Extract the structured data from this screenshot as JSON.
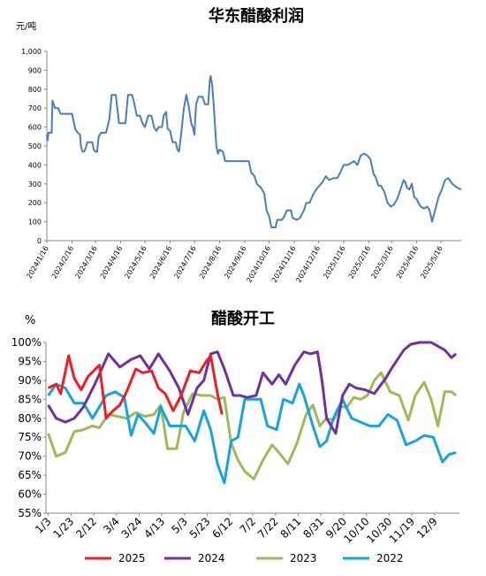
{
  "chart_data": [
    {
      "type": "line",
      "title": "华东醋酸利润",
      "ylabel": "元/吨",
      "ylim": [
        0,
        1000
      ],
      "yticks": [
        "0",
        "100",
        "200",
        "300",
        "400",
        "500",
        "600",
        "700",
        "800",
        "900",
        "1,000"
      ],
      "xlim": [
        "2024-01-16",
        "2025-06-10"
      ],
      "xticks": [
        "2024/1/16",
        "2024/2/16",
        "2024/3/16",
        "2024/4/16",
        "2024/5/16",
        "2024/6/16",
        "2024/7/16",
        "2024/8/16",
        "2024/9/16",
        "2024/10/16",
        "2024/11/16",
        "2024/12/16",
        "2025/1/16",
        "2025/2/16",
        "2025/3/16",
        "2025/4/16",
        "2025/5/16"
      ],
      "grid": false,
      "series": [
        {
          "color": "#4a7ebb",
          "points": [
            [
              "2024-01-16",
              560
            ],
            [
              "2024-01-17",
              530
            ],
            [
              "2024-01-18",
              570
            ],
            [
              "2024-01-22",
              570
            ],
            [
              "2024-01-23",
              740
            ],
            [
              "2024-01-26",
              700
            ],
            [
              "2024-01-30",
              700
            ],
            [
              "2024-02-02",
              670
            ],
            [
              "2024-02-06",
              670
            ],
            [
              "2024-02-16",
              670
            ],
            [
              "2024-02-20",
              590
            ],
            [
              "2024-02-23",
              570
            ],
            [
              "2024-02-26",
              560
            ],
            [
              "2024-02-27",
              500
            ],
            [
              "2024-02-29",
              470
            ],
            [
              "2024-03-02",
              470
            ],
            [
              "2024-03-04",
              490
            ],
            [
              "2024-03-06",
              520
            ],
            [
              "2024-03-12",
              520
            ],
            [
              "2024-03-14",
              480
            ],
            [
              "2024-03-16",
              470
            ],
            [
              "2024-03-18",
              470
            ],
            [
              "2024-03-20",
              550
            ],
            [
              "2024-03-23",
              570
            ],
            [
              "2024-03-29",
              570
            ],
            [
              "2024-04-02",
              640
            ],
            [
              "2024-04-05",
              770
            ],
            [
              "2024-04-10",
              770
            ],
            [
              "2024-04-12",
              700
            ],
            [
              "2024-04-14",
              620
            ],
            [
              "2024-04-22",
              620
            ],
            [
              "2024-04-25",
              770
            ],
            [
              "2024-04-30",
              770
            ],
            [
              "2024-05-02",
              740
            ],
            [
              "2024-05-06",
              660
            ],
            [
              "2024-05-10",
              660
            ],
            [
              "2024-05-13",
              620
            ],
            [
              "2024-05-16",
              600
            ],
            [
              "2024-05-20",
              660
            ],
            [
              "2024-05-24",
              660
            ],
            [
              "2024-05-27",
              600
            ],
            [
              "2024-05-30",
              580
            ],
            [
              "2024-06-02",
              600
            ],
            [
              "2024-06-06",
              600
            ],
            [
              "2024-06-08",
              660
            ],
            [
              "2024-06-11",
              680
            ],
            [
              "2024-06-13",
              590
            ],
            [
              "2024-06-16",
              580
            ],
            [
              "2024-06-19",
              520
            ],
            [
              "2024-06-23",
              520
            ],
            [
              "2024-06-25",
              480
            ],
            [
              "2024-06-27",
              470
            ],
            [
              "2024-06-30",
              580
            ],
            [
              "2024-07-03",
              700
            ],
            [
              "2024-07-06",
              770
            ],
            [
              "2024-07-09",
              710
            ],
            [
              "2024-07-12",
              620
            ],
            [
              "2024-07-14",
              600
            ],
            [
              "2024-07-16",
              560
            ],
            [
              "2024-07-18",
              720
            ],
            [
              "2024-07-21",
              760
            ],
            [
              "2024-07-26",
              760
            ],
            [
              "2024-07-29",
              720
            ],
            [
              "2024-08-02",
              720
            ],
            [
              "2024-08-04",
              850
            ],
            [
              "2024-08-05",
              870
            ],
            [
              "2024-08-07",
              820
            ],
            [
              "2024-08-09",
              700
            ],
            [
              "2024-08-12",
              500
            ],
            [
              "2024-08-14",
              460
            ],
            [
              "2024-08-16",
              480
            ],
            [
              "2024-08-20",
              470
            ],
            [
              "2024-08-23",
              420
            ],
            [
              "2024-09-01",
              420
            ],
            [
              "2024-09-16",
              420
            ],
            [
              "2024-09-21",
              420
            ],
            [
              "2024-09-24",
              360
            ],
            [
              "2024-09-28",
              340
            ],
            [
              "2024-10-01",
              300
            ],
            [
              "2024-10-06",
              280
            ],
            [
              "2024-10-10",
              250
            ],
            [
              "2024-10-13",
              160
            ],
            [
              "2024-10-16",
              130
            ],
            [
              "2024-10-19",
              70
            ],
            [
              "2024-10-24",
              70
            ],
            [
              "2024-10-26",
              110
            ],
            [
              "2024-11-01",
              110
            ],
            [
              "2024-11-04",
              130
            ],
            [
              "2024-11-07",
              160
            ],
            [
              "2024-11-12",
              160
            ],
            [
              "2024-11-14",
              120
            ],
            [
              "2024-11-19",
              110
            ],
            [
              "2024-11-23",
              120
            ],
            [
              "2024-11-28",
              160
            ],
            [
              "2024-12-01",
              200
            ],
            [
              "2024-12-05",
              200
            ],
            [
              "2024-12-09",
              240
            ],
            [
              "2024-12-13",
              270
            ],
            [
              "2024-12-17",
              290
            ],
            [
              "2024-12-21",
              310
            ],
            [
              "2024-12-25",
              340
            ],
            [
              "2024-12-29",
              320
            ],
            [
              "2025-01-03",
              330
            ],
            [
              "2025-01-08",
              330
            ],
            [
              "2025-01-12",
              360
            ],
            [
              "2025-01-16",
              400
            ],
            [
              "2025-01-21",
              400
            ],
            [
              "2025-01-25",
              410
            ],
            [
              "2025-01-29",
              420
            ],
            [
              "2025-02-02",
              400
            ],
            [
              "2025-02-06",
              450
            ],
            [
              "2025-02-10",
              460
            ],
            [
              "2025-02-14",
              450
            ],
            [
              "2025-02-18",
              430
            ],
            [
              "2025-02-22",
              350
            ],
            [
              "2025-02-24",
              340
            ],
            [
              "2025-02-28",
              290
            ],
            [
              "2025-03-03",
              290
            ],
            [
              "2025-03-07",
              260
            ],
            [
              "2025-03-11",
              200
            ],
            [
              "2025-03-15",
              180
            ],
            [
              "2025-03-19",
              190
            ],
            [
              "2025-03-23",
              220
            ],
            [
              "2025-03-27",
              270
            ],
            [
              "2025-03-31",
              320
            ],
            [
              "2025-04-02",
              310
            ],
            [
              "2025-04-04",
              280
            ],
            [
              "2025-04-07",
              270
            ],
            [
              "2025-04-10",
              300
            ],
            [
              "2025-04-13",
              230
            ],
            [
              "2025-04-16",
              220
            ],
            [
              "2025-04-18",
              200
            ],
            [
              "2025-04-21",
              180
            ],
            [
              "2025-04-25",
              170
            ],
            [
              "2025-04-29",
              180
            ],
            [
              "2025-05-02",
              160
            ],
            [
              "2025-05-05",
              100
            ],
            [
              "2025-05-08",
              150
            ],
            [
              "2025-05-13",
              230
            ],
            [
              "2025-05-17",
              270
            ],
            [
              "2025-05-21",
              320
            ],
            [
              "2025-05-25",
              330
            ],
            [
              "2025-05-30",
              300
            ],
            [
              "2025-06-05",
              280
            ],
            [
              "2025-06-10",
              270
            ]
          ]
        }
      ]
    },
    {
      "type": "line",
      "title": "醋酸开工",
      "ylabel": "%",
      "ylim": [
        55,
        100
      ],
      "yticks": [
        "55%",
        "60%",
        "65%",
        "70%",
        "75%",
        "80%",
        "85%",
        "90%",
        "95%",
        "100%"
      ],
      "xlim": [
        1,
        365
      ],
      "xticks": [
        "1/3",
        "1/23",
        "2/12",
        "3/4",
        "3/24",
        "4/13",
        "5/3",
        "5/23",
        "6/12",
        "7/2",
        "7/22",
        "8/11",
        "8/31",
        "9/20",
        "10/10",
        "10/30",
        "11/19",
        "12/9"
      ],
      "xtick_days": [
        3,
        23,
        43,
        63,
        83,
        103,
        123,
        143,
        163,
        183,
        203,
        223,
        243,
        263,
        283,
        303,
        323,
        343
      ],
      "grid": false,
      "legend": "bottom",
      "series": [
        {
          "name": "2025",
          "color": "#ee1c25",
          "x": [
            3,
            10,
            14,
            21,
            26,
            32,
            38,
            48,
            54,
            60,
            66,
            72,
            80,
            86,
            94,
            100,
            106,
            113,
            120,
            128,
            136,
            142,
            146,
            152,
            156
          ],
          "values": [
            88,
            89,
            86.5,
            96.5,
            90.5,
            87.5,
            91,
            94,
            80,
            82,
            83.5,
            87,
            93,
            92,
            92.5,
            88,
            86.5,
            82,
            86,
            92.5,
            92,
            95,
            96.5,
            86.5,
            81
          ]
        },
        {
          "name": "2024",
          "color": "#7030a0",
          "x": [
            3,
            10,
            18,
            26,
            34,
            44,
            56,
            66,
            76,
            84,
            92,
            100,
            110,
            118,
            126,
            134,
            140,
            146,
            152,
            158,
            166,
            172,
            178,
            186,
            192,
            200,
            206,
            212,
            220,
            228,
            234,
            240,
            244,
            248,
            256,
            262,
            268,
            274,
            282,
            290,
            300,
            306,
            316,
            322,
            330,
            340,
            346,
            352,
            358,
            362
          ],
          "values": [
            83.5,
            80,
            79,
            80,
            83,
            89,
            97,
            93.5,
            95.5,
            96.5,
            93,
            97,
            92.5,
            88,
            81,
            88,
            90,
            97,
            97.5,
            93,
            86,
            86,
            85.5,
            86,
            92,
            89,
            91.5,
            89,
            94,
            97.5,
            97,
            97.5,
            90,
            80,
            76,
            86,
            89,
            88,
            87.5,
            86.5,
            90.5,
            93.5,
            98,
            99.5,
            100,
            100,
            99,
            98,
            96,
            97
          ]
        },
        {
          "name": "2023",
          "color": "#9bbb59",
          "x": [
            3,
            10,
            18,
            26,
            34,
            42,
            48,
            56,
            64,
            72,
            80,
            88,
            96,
            102,
            108,
            116,
            122,
            130,
            138,
            146,
            152,
            158,
            164,
            170,
            176,
            184,
            192,
            200,
            206,
            214,
            222,
            230,
            236,
            242,
            248,
            254,
            260,
            266,
            272,
            278,
            284,
            290,
            296,
            304,
            312,
            320,
            326,
            334,
            340,
            346,
            352,
            358,
            362
          ],
          "values": [
            76,
            70,
            71,
            76.5,
            77,
            78,
            77.5,
            81,
            80.5,
            80,
            81.5,
            80.5,
            81,
            83.5,
            72,
            72,
            81.5,
            86.5,
            86,
            86,
            85,
            85.5,
            73.5,
            69,
            66,
            64,
            69,
            73,
            71,
            68,
            73.5,
            81,
            83.5,
            78,
            80,
            79.5,
            83,
            83,
            85.5,
            85,
            86,
            90,
            92,
            87,
            86,
            79.5,
            86,
            89.5,
            85,
            78,
            87,
            87,
            86
          ]
        },
        {
          "name": "2022",
          "color": "#17a2e0",
          "x": [
            3,
            10,
            18,
            26,
            34,
            42,
            48,
            54,
            62,
            70,
            76,
            82,
            88,
            96,
            102,
            110,
            116,
            124,
            132,
            140,
            146,
            152,
            158,
            164,
            170,
            176,
            184,
            190,
            196,
            204,
            210,
            218,
            224,
            228,
            232,
            236,
            242,
            248,
            254,
            262,
            270,
            278,
            286,
            294,
            302,
            310,
            318,
            326,
            334,
            342,
            350,
            356,
            362
          ],
          "values": [
            86,
            89,
            88,
            84,
            84,
            80,
            83,
            86,
            87,
            85.5,
            75.5,
            81,
            79,
            76,
            83,
            78,
            78,
            78,
            74,
            82,
            77,
            68,
            63,
            74,
            75,
            85,
            85,
            85,
            78,
            77,
            85,
            84,
            89,
            86,
            82,
            78,
            72.5,
            74,
            80,
            85,
            80,
            79,
            78,
            78,
            81,
            79.5,
            73,
            74,
            75.5,
            75,
            68.5,
            70.5,
            71
          ]
        }
      ]
    }
  ]
}
